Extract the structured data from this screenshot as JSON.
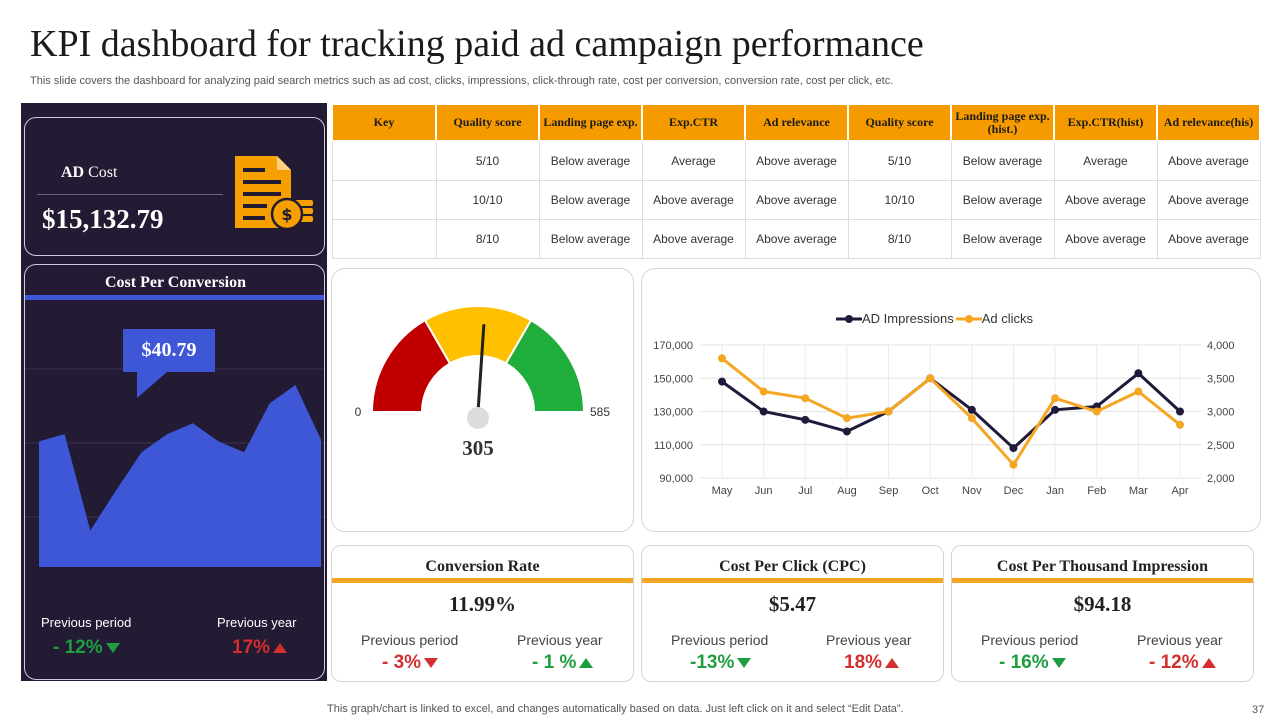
{
  "page": {
    "title": "KPI dashboard for tracking paid ad campaign performance",
    "subtitle": "This slide covers the dashboard for analyzing paid search metrics such as ad cost, clicks, impressions, click-through rate, cost per conversion, conversion rate, cost per click, etc.",
    "footer": "This graph/chart is linked to excel,  and changes automatically based on data. Just left click on it and select “Edit Data”.",
    "page_number": "37"
  },
  "ad_cost": {
    "label_bold": "AD",
    "label_rest": " Cost",
    "value": "$15,132.79",
    "icon": "invoice-dollar-icon"
  },
  "cost_per_conversion": {
    "title": "Cost Per Conversion",
    "callout": "$40.79",
    "series": [
      0.69,
      0.73,
      0.2,
      0.42,
      0.63,
      0.73,
      0.79,
      0.69,
      0.63,
      0.9,
      1.0,
      0.7
    ],
    "previous_period_label": "Previous period",
    "previous_period_value": "- 12%",
    "previous_year_label": "Previous year",
    "previous_year_value": "17%"
  },
  "table": {
    "headers": [
      "Key",
      "Quality score",
      "Landing page exp.",
      "Exp.CTR",
      "Ad relevance",
      "Quality score",
      "Landing page exp.(hist.)",
      "Exp.CTR(hist)",
      "Ad relevance(his)"
    ],
    "rows": [
      [
        "",
        "5/10",
        "Below average",
        "Average",
        "Above average",
        "5/10",
        "Below average",
        "Average",
        "Above average"
      ],
      [
        "",
        "10/10",
        "Below average",
        "Above average",
        "Above average",
        "10/10",
        "Below average",
        "Above average",
        "Above average"
      ],
      [
        "",
        "8/10",
        "Below average",
        "Above average",
        "Above average",
        "8/10",
        "Below average",
        "Above average",
        "Above average"
      ]
    ]
  },
  "gauge": {
    "min": "0",
    "max": "585",
    "value": "305",
    "value_num": 305,
    "max_num": 585,
    "colors": [
      "#c00000",
      "#ffc000",
      "#1fae3c"
    ]
  },
  "chart_data": {
    "type": "line",
    "categories": [
      "May",
      "Jun",
      "Jul",
      "Aug",
      "Sep",
      "Oct",
      "Nov",
      "Dec",
      "Jan",
      "Feb",
      "Mar",
      "Apr"
    ],
    "series": [
      {
        "name": "AD Impressions",
        "axis": "left",
        "color": "#1f1a3a",
        "values": [
          148000,
          130000,
          125000,
          118000,
          130000,
          150000,
          131000,
          108000,
          131000,
          133000,
          153000,
          130000
        ]
      },
      {
        "name": "Ad clicks",
        "axis": "right",
        "color": "#f5a623",
        "values": [
          3800,
          3300,
          3200,
          2900,
          3000,
          3500,
          2900,
          2200,
          3200,
          3000,
          3300,
          2800
        ]
      }
    ],
    "ylim_left": [
      90000,
      170000
    ],
    "yticks_left": [
      "170,000",
      "150,000",
      "130,000",
      "110,000",
      "90,000"
    ],
    "ylim_right": [
      2000,
      4000
    ],
    "yticks_right": [
      "4,000",
      "3,500",
      "3,000",
      "2,500",
      "2,000"
    ],
    "grid": true,
    "legend": "top"
  },
  "metrics": [
    {
      "title": "Conversion Rate",
      "value": "11.99%",
      "pp_label": "Previous period",
      "pp_value": "- 3%",
      "py_label": "Previous year",
      "py_value": "- 1 %"
    },
    {
      "title": "Cost Per Click (CPC)",
      "value": "$5.47",
      "pp_label": "Previous period",
      "pp_value": "-13%",
      "py_label": "Previous year",
      "py_value": "18%"
    },
    {
      "title": "Cost Per Thousand Impression",
      "value": "$94.18",
      "pp_label": "Previous period",
      "pp_value": "- 16%",
      "py_label": "Previous year",
      "py_value": "- 12%"
    }
  ]
}
